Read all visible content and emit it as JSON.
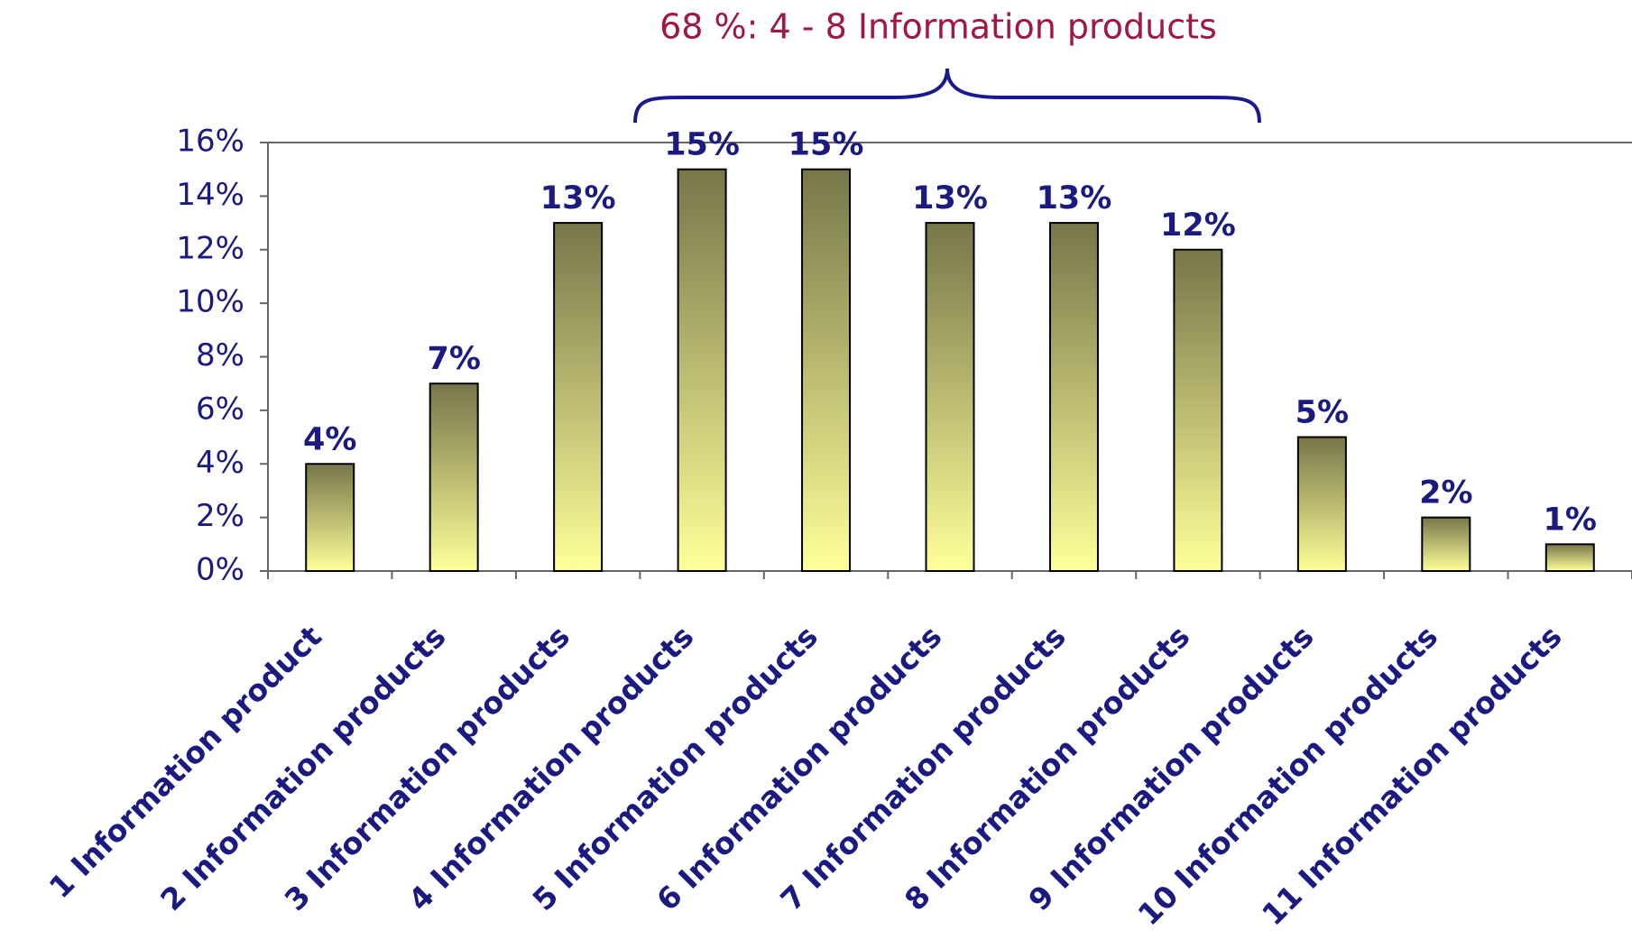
{
  "chart_data": {
    "type": "bar",
    "annotation": "68 %: 4 - 8 Information products",
    "categories": [
      "1 Information product",
      "2 Information products",
      "3 Information products",
      "4 Information products",
      "5 Information products",
      "6 Information products",
      "7 Information products",
      "8 Information products",
      "9 Information products",
      "10 Information products",
      "11 Information products"
    ],
    "values": [
      4,
      7,
      13,
      15,
      15,
      13,
      13,
      12,
      5,
      2,
      1
    ],
    "value_labels": [
      "4%",
      "7%",
      "13%",
      "15%",
      "15%",
      "13%",
      "13%",
      "12%",
      "5%",
      "2%",
      "1%"
    ],
    "color_top": "#76764a",
    "color_bottom": "#ffff99",
    "ylim": [
      0,
      16
    ],
    "yticks": [
      {
        "value": 0,
        "label": "0%"
      },
      {
        "value": 2,
        "label": "2%"
      },
      {
        "value": 4,
        "label": "4%"
      },
      {
        "value": 6,
        "label": "6%"
      },
      {
        "value": 8,
        "label": "8%"
      },
      {
        "value": 10,
        "label": "10%"
      },
      {
        "value": 12,
        "label": "12%"
      },
      {
        "value": 14,
        "label": "14%"
      },
      {
        "value": 16,
        "label": "16%"
      }
    ],
    "grid": false
  }
}
